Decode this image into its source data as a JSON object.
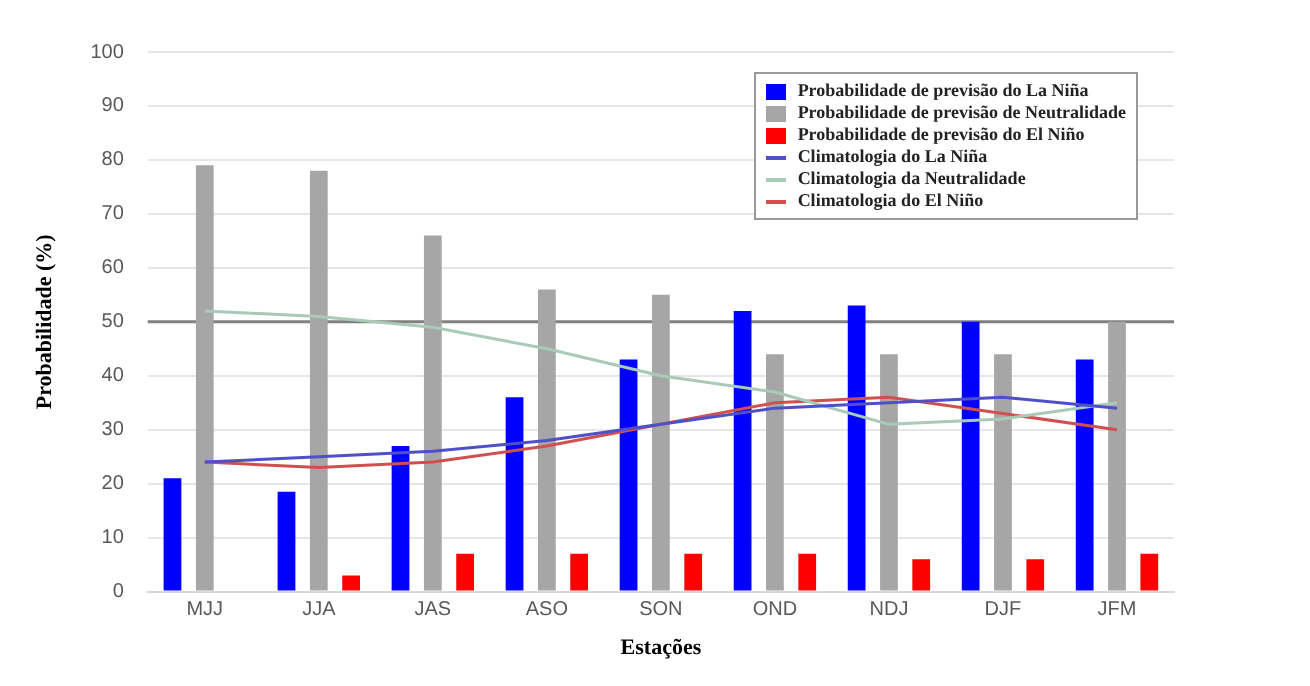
{
  "chart_data": {
    "type": "bar",
    "xlabel": "Estações",
    "ylabel": "Probabilidade (%)",
    "categories": [
      "MJJ",
      "JJA",
      "JAS",
      "ASO",
      "SON",
      "OND",
      "NDJ",
      "DJF",
      "JFM"
    ],
    "series": [
      {
        "name": "Probabilidade de previsão do La Niña",
        "color": "#0000ff",
        "values": [
          21,
          18.5,
          27,
          36,
          43,
          52,
          53,
          50,
          43
        ]
      },
      {
        "name": "Probabilidade de previsão de Neutralidade",
        "color": "#a6a6a6",
        "values": [
          79,
          78,
          66,
          56,
          55,
          44,
          44,
          44,
          50
        ]
      },
      {
        "name": "Probabilidade de previsão do El Niño",
        "color": "#ff0000",
        "values": [
          0,
          3,
          7,
          7,
          7,
          7,
          6,
          6,
          7
        ]
      },
      {
        "name": "Climatologia do La Niña",
        "type": "line",
        "color": "#4f4fc8",
        "values": [
          24,
          25,
          26,
          28,
          31,
          34,
          35,
          36,
          34
        ]
      },
      {
        "name": "Climatologia da Neutralidade",
        "type": "line",
        "color": "#a9c9b9",
        "values": [
          52,
          51,
          49,
          45,
          40,
          37,
          31,
          32,
          35
        ]
      },
      {
        "name": "Climatologia do El Niño",
        "type": "line",
        "color": "#d05050",
        "values": [
          24,
          23,
          24,
          27,
          31,
          35,
          36,
          33,
          30
        ]
      }
    ],
    "ylim": [
      0,
      100
    ],
    "yticks": [
      0,
      10,
      20,
      30,
      40,
      50,
      60,
      70,
      80,
      90,
      100
    ],
    "ref_lines": [
      {
        "axis": "y",
        "value": 50,
        "color": "#808080"
      }
    ],
    "grid": "y",
    "legend": "top right",
    "marker": "none",
    "line_style": "solid"
  }
}
